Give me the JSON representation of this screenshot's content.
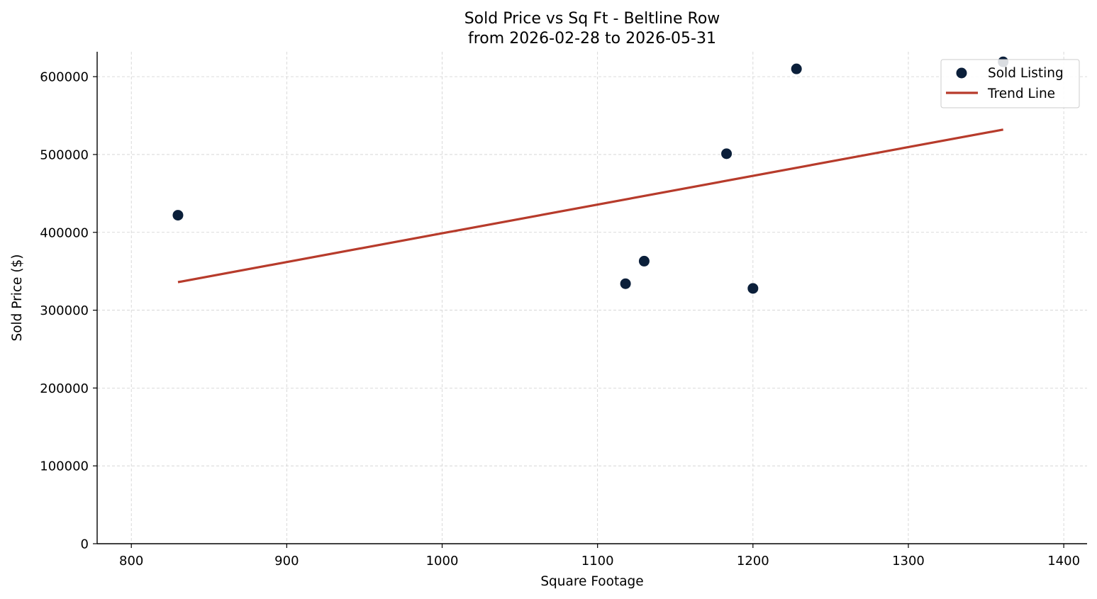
{
  "chart_data": {
    "type": "scatter",
    "title_line1": "Sold Price vs Sq Ft - Beltline Row",
    "title_line2": "from 2026-02-28 to 2026-05-31",
    "xlabel": "Square Footage",
    "ylabel": "Sold Price ($)",
    "xlim": [
      778,
      1415
    ],
    "ylim": [
      0,
      632000
    ],
    "xticks": [
      800,
      900,
      1000,
      1100,
      1200,
      1300,
      1400
    ],
    "yticks": [
      0,
      100000,
      200000,
      300000,
      400000,
      500000,
      600000
    ],
    "grid": true,
    "legend_position": "top-right",
    "series": [
      {
        "name": "Sold Listing",
        "kind": "scatter",
        "color": "#0b1f3a",
        "points": [
          {
            "x": 830,
            "y": 422000
          },
          {
            "x": 1118,
            "y": 334000
          },
          {
            "x": 1130,
            "y": 363000
          },
          {
            "x": 1183,
            "y": 501000
          },
          {
            "x": 1200,
            "y": 328000
          },
          {
            "x": 1228,
            "y": 610000
          },
          {
            "x": 1361,
            "y": 619000
          }
        ]
      },
      {
        "name": "Trend Line",
        "kind": "line",
        "color": "#b73b2b",
        "points": [
          {
            "x": 830,
            "y": 336000
          },
          {
            "x": 1361,
            "y": 532000
          }
        ]
      }
    ]
  }
}
